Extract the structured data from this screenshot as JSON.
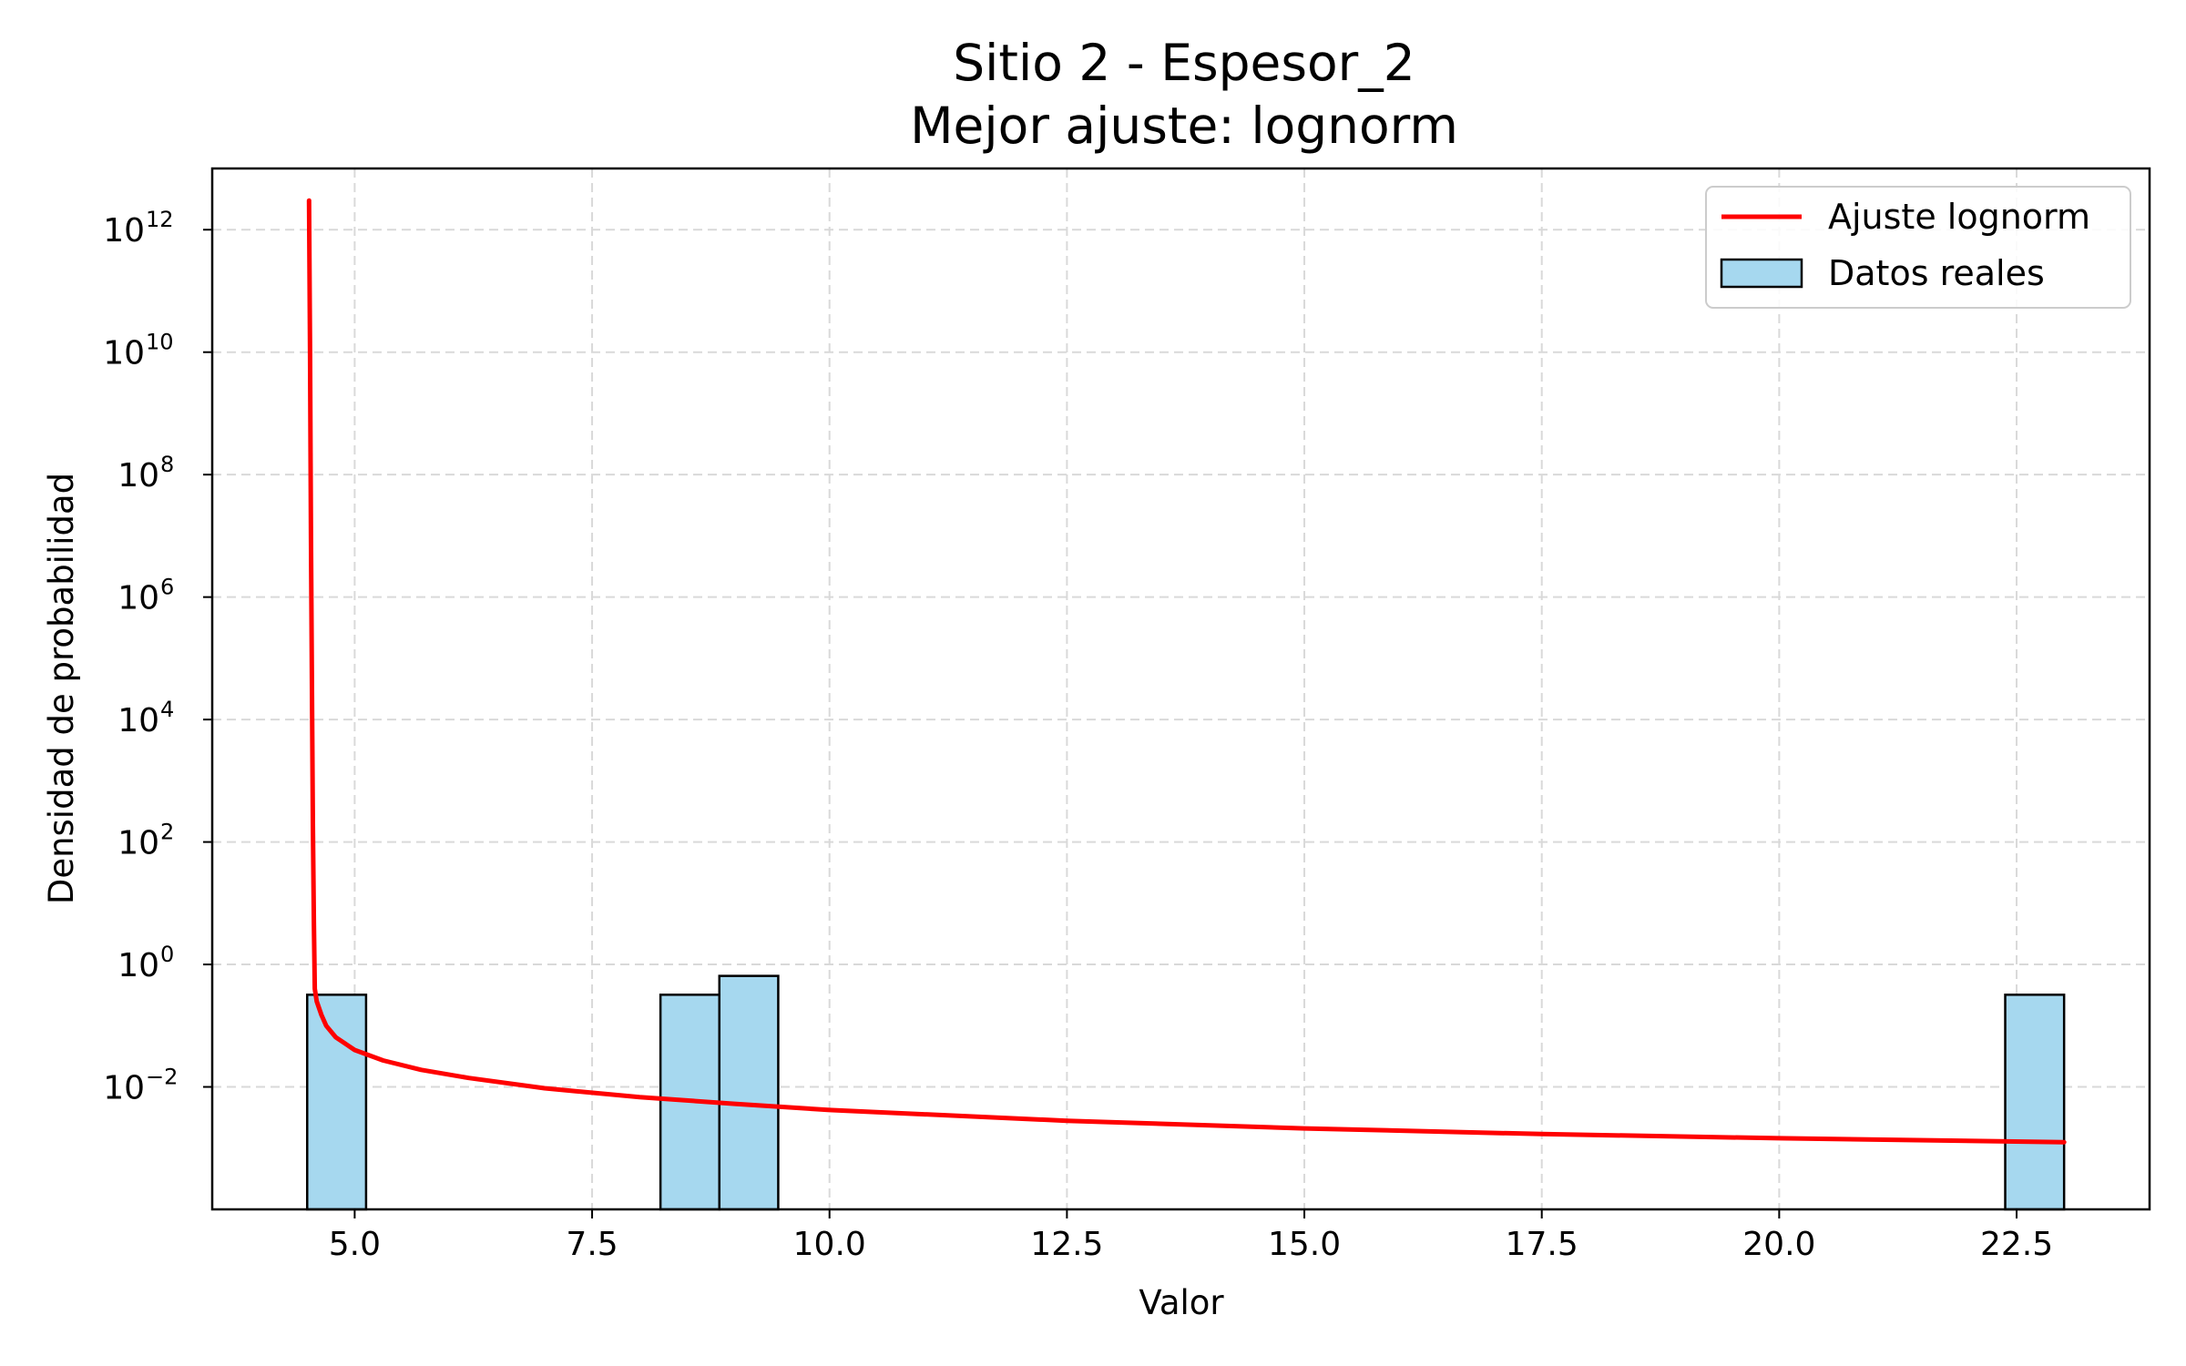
{
  "chart_data": {
    "type": "bar",
    "title": "Sitio 2 - Espesor_2",
    "subtitle": "Mejor ajuste: lognorm",
    "xlabel": "Valor",
    "ylabel": "Densidad de probabilidad",
    "xlim": [
      3.5,
      23.9
    ],
    "ylim": [
      0.0001,
      10000000000000.0
    ],
    "yscale": "log",
    "grid": true,
    "legend_position": "top-right",
    "x_ticks": [
      5.0,
      7.5,
      10.0,
      12.5,
      15.0,
      17.5,
      20.0,
      22.5
    ],
    "x_tick_labels": [
      "5.0",
      "7.5",
      "10.0",
      "12.5",
      "15.0",
      "17.5",
      "20.0",
      "22.5"
    ],
    "y_tick_exponents": [
      -2,
      0,
      2,
      4,
      6,
      8,
      10,
      12
    ],
    "y_tick_base": "10",
    "histogram": {
      "name": "Datos reales",
      "color": "#a6d8ef",
      "edge_color": "#000000",
      "bins": [
        {
          "x0": 4.5,
          "x1": 5.12,
          "value": 0.32
        },
        {
          "x0": 8.22,
          "x1": 8.84,
          "value": 0.32
        },
        {
          "x0": 8.84,
          "x1": 9.46,
          "value": 0.65
        },
        {
          "x0": 22.38,
          "x1": 23.0,
          "value": 0.32
        }
      ]
    },
    "series": [
      {
        "name": "Ajuste lognorm",
        "color": "#ff0000",
        "x": [
          4.52,
          4.53,
          4.54,
          4.55,
          4.56,
          4.57,
          4.58,
          4.6,
          4.65,
          4.7,
          4.8,
          5.0,
          5.3,
          5.7,
          6.2,
          7.0,
          8.0,
          9.0,
          10.0,
          12.5,
          15.0,
          17.5,
          20.0,
          23.0
        ],
        "y": [
          3000000000000.0,
          10000000000.0,
          10000000.0,
          30000.0,
          200,
          5,
          0.4,
          0.25,
          0.15,
          0.1,
          0.065,
          0.04,
          0.027,
          0.019,
          0.014,
          0.0095,
          0.0068,
          0.0053,
          0.0042,
          0.0028,
          0.0021,
          0.0017,
          0.00145,
          0.00125
        ]
      }
    ]
  }
}
